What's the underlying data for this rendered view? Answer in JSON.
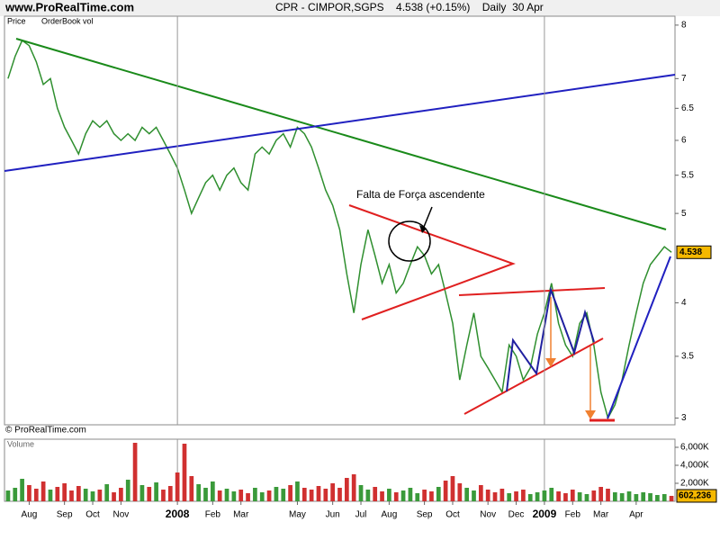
{
  "header": {
    "site": "www.ProRealTime.com",
    "copyright": "© ProRealTime.com"
  },
  "chart_data": {
    "type": "line",
    "title": "CPR - CIMPOR,SGPS    4.538 (+0.15%)    Daily  30 Apr",
    "panel_labels": [
      "Price",
      "OrderBook vol"
    ],
    "annotation": "Falta de Força ascendente",
    "categories": [
      null,
      null,
      null,
      "Aug",
      null,
      null,
      null,
      null,
      "Sep",
      null,
      null,
      null,
      "Oct",
      null,
      null,
      null,
      "Nov",
      null,
      null,
      null,
      null,
      null,
      null,
      null,
      "2008",
      null,
      null,
      null,
      null,
      "Feb",
      null,
      null,
      null,
      "Mar",
      null,
      null,
      null,
      null,
      null,
      null,
      null,
      "May",
      null,
      null,
      null,
      null,
      "Jun",
      null,
      null,
      null,
      "Jul",
      null,
      null,
      null,
      "Aug",
      null,
      null,
      null,
      null,
      "Sep",
      null,
      null,
      null,
      "Oct",
      null,
      null,
      null,
      null,
      "Nov",
      null,
      null,
      null,
      "Dec",
      null,
      null,
      null,
      "2009",
      null,
      null,
      null,
      "Feb",
      null,
      null,
      null,
      "Mar",
      null,
      null,
      null,
      null,
      "Apr",
      null,
      null,
      null,
      null,
      null
    ],
    "series": [
      {
        "name": "Price",
        "color": "#2f8f2f",
        "values": [
          7.0,
          7.4,
          7.7,
          7.6,
          7.3,
          6.9,
          7.0,
          6.5,
          6.2,
          6.0,
          5.8,
          6.1,
          6.3,
          6.2,
          6.3,
          6.1,
          6.0,
          6.1,
          6.0,
          6.2,
          6.1,
          6.2,
          6.0,
          5.8,
          5.6,
          5.3,
          5.0,
          5.2,
          5.4,
          5.5,
          5.3,
          5.5,
          5.6,
          5.4,
          5.3,
          5.8,
          5.9,
          5.8,
          6.0,
          6.1,
          5.9,
          6.2,
          6.1,
          5.9,
          5.6,
          5.3,
          5.1,
          4.8,
          4.3,
          3.9,
          4.4,
          4.8,
          4.5,
          4.2,
          4.4,
          4.1,
          4.2,
          4.4,
          4.6,
          4.5,
          4.3,
          4.4,
          4.1,
          3.8,
          3.3,
          3.6,
          3.9,
          3.5,
          3.4,
          3.3,
          3.2,
          3.6,
          3.5,
          3.3,
          3.4,
          3.7,
          3.9,
          4.2,
          3.8,
          3.6,
          3.5,
          3.8,
          3.9,
          3.6,
          3.2,
          3.0,
          3.1,
          3.3,
          3.6,
          3.9,
          4.2,
          4.4,
          4.5,
          4.6,
          4.538
        ],
        "value_labels": [
          null,
          null,
          null,
          null,
          null,
          null,
          null,
          null,
          null,
          null,
          null,
          null,
          null,
          null,
          null,
          null,
          null,
          null,
          null,
          null,
          null,
          null,
          null,
          null,
          null,
          null,
          null,
          null,
          null,
          null,
          null,
          null,
          null,
          null,
          null,
          null,
          null,
          null,
          null,
          null,
          null,
          null,
          null,
          null,
          null,
          null,
          null,
          null,
          null,
          null,
          null,
          null,
          null,
          null,
          null,
          null,
          null,
          null,
          null,
          null,
          null,
          null,
          null,
          null,
          null,
          null,
          null,
          null,
          null,
          null,
          null,
          null,
          null,
          null,
          null,
          null,
          null,
          null,
          null,
          null,
          null,
          null,
          null,
          null,
          null,
          null,
          null,
          null,
          null,
          null,
          null,
          null,
          null,
          null,
          "4.538"
        ]
      }
    ],
    "log_scale": true,
    "ylim": [
      2.95,
      8.18
    ],
    "yticks": [
      3,
      3.5,
      4,
      5,
      5.5,
      6,
      6.5,
      7,
      8
    ],
    "volume": {
      "name": "Volume",
      "color": "#3a9a3a",
      "down_color": "#d03030",
      "values": [
        1200000,
        1500000,
        2500000,
        1800000,
        1400000,
        2200000,
        1300000,
        1600000,
        2000000,
        1200000,
        1700000,
        1400000,
        1100000,
        1300000,
        1900000,
        1000000,
        1500000,
        2400000,
        6500000,
        1800000,
        1600000,
        2100000,
        1300000,
        1700000,
        3200000,
        6400000,
        2800000,
        1900000,
        1500000,
        2200000,
        1200000,
        1400000,
        1100000,
        1300000,
        900000,
        1500000,
        1000000,
        1200000,
        1600000,
        1400000,
        1800000,
        2200000,
        1500000,
        1300000,
        1700000,
        1400000,
        2000000,
        1500000,
        2600000,
        3000000,
        1800000,
        1300000,
        1600000,
        1100000,
        1400000,
        1000000,
        1200000,
        1500000,
        900000,
        1300000,
        1100000,
        1600000,
        2300000,
        2800000,
        2000000,
        1500000,
        1200000,
        1800000,
        1300000,
        1000000,
        1400000,
        900000,
        1100000,
        1300000,
        800000,
        1000000,
        1200000,
        1500000,
        1100000,
        900000,
        1300000,
        1000000,
        800000,
        1200000,
        1600000,
        1400000,
        1000000,
        900000,
        1100000,
        800000,
        1000000,
        900000,
        700000,
        800000,
        602236
      ],
      "value_labels": [
        null,
        null,
        null,
        null,
        null,
        null,
        null,
        null,
        null,
        null,
        null,
        null,
        null,
        null,
        null,
        null,
        null,
        null,
        null,
        null,
        null,
        null,
        null,
        null,
        null,
        null,
        null,
        null,
        null,
        null,
        null,
        null,
        null,
        null,
        null,
        null,
        null,
        null,
        null,
        null,
        null,
        null,
        null,
        null,
        null,
        null,
        null,
        null,
        null,
        null,
        null,
        null,
        null,
        null,
        null,
        null,
        null,
        null,
        null,
        null,
        null,
        null,
        null,
        null,
        null,
        null,
        null,
        null,
        null,
        null,
        null,
        null,
        null,
        null,
        null,
        null,
        null,
        null,
        null,
        null,
        null,
        null,
        null,
        null,
        null,
        null,
        null,
        null,
        null,
        null,
        null,
        null,
        null,
        null,
        "602,236"
      ],
      "ylim": [
        0,
        6900000
      ],
      "yticks": [
        {
          "value": 2000000,
          "label": "2,000K"
        },
        {
          "value": 4000000,
          "label": "4,000K"
        },
        {
          "value": 6000000,
          "label": "6,000K"
        }
      ]
    }
  }
}
